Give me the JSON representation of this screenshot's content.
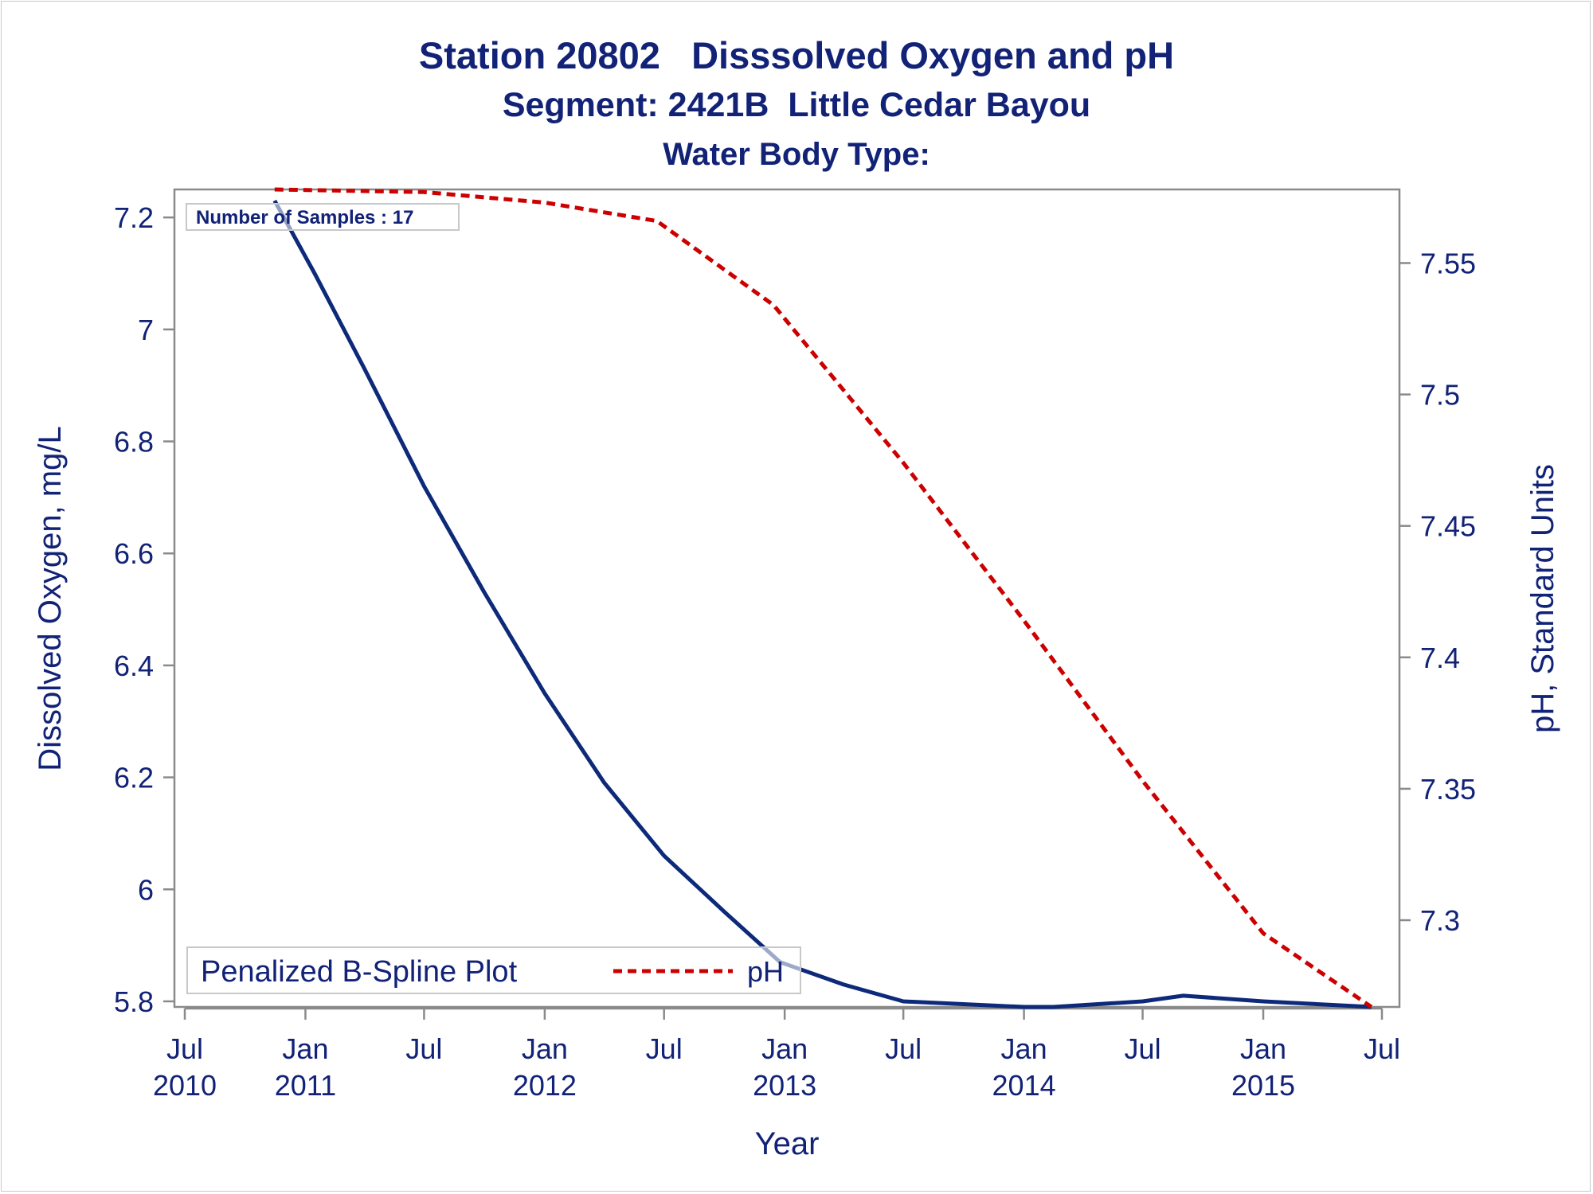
{
  "titles": {
    "line1": "Station 20802   Disssolved Oxygen and pH",
    "line2": "Segment: 2421B  Little Cedar Bayou",
    "line3": "Water Body Type:"
  },
  "colors": {
    "text": "#112277",
    "do_line": "#0d2a7a",
    "ph_line": "#cc0000",
    "axis": "#8a8a8a"
  },
  "chart_data": {
    "type": "line",
    "xlabel": "Year",
    "ylabel": "Dissolved Oxygen, mg/L",
    "y2label": "pH, Standard Units",
    "xlim": [
      "2010-07-01",
      "2015-07-01"
    ],
    "ylim": [
      5.79,
      7.25
    ],
    "y2lim": [
      7.267,
      7.578
    ],
    "xticks": [
      {
        "date": "2010-07-01",
        "month": "Jul",
        "year": "2010"
      },
      {
        "date": "2011-01-01",
        "month": "Jan",
        "year": "2011"
      },
      {
        "date": "2011-07-01",
        "month": "Jul",
        "year": ""
      },
      {
        "date": "2012-01-01",
        "month": "Jan",
        "year": "2012"
      },
      {
        "date": "2012-07-01",
        "month": "Jul",
        "year": ""
      },
      {
        "date": "2013-01-01",
        "month": "Jan",
        "year": "2013"
      },
      {
        "date": "2013-07-01",
        "month": "Jul",
        "year": ""
      },
      {
        "date": "2014-01-01",
        "month": "Jan",
        "year": "2014"
      },
      {
        "date": "2014-07-01",
        "month": "Jul",
        "year": ""
      },
      {
        "date": "2015-01-01",
        "month": "Jan",
        "year": "2015"
      },
      {
        "date": "2015-07-01",
        "month": "Jul",
        "year": ""
      }
    ],
    "yticks": [
      {
        "value": 5.8,
        "label": "5.8"
      },
      {
        "value": 6.0,
        "label": "6"
      },
      {
        "value": 6.2,
        "label": "6.2"
      },
      {
        "value": 6.4,
        "label": "6.4"
      },
      {
        "value": 6.6,
        "label": "6.6"
      },
      {
        "value": 6.8,
        "label": "6.8"
      },
      {
        "value": 7.0,
        "label": "7"
      },
      {
        "value": 7.2,
        "label": "7.2"
      }
    ],
    "y2ticks": [
      {
        "value": 7.3,
        "label": "7.3"
      },
      {
        "value": 7.35,
        "label": "7.35"
      },
      {
        "value": 7.4,
        "label": "7.4"
      },
      {
        "value": 7.45,
        "label": "7.45"
      },
      {
        "value": 7.5,
        "label": "7.5"
      },
      {
        "value": 7.55,
        "label": "7.55"
      }
    ],
    "series": [
      {
        "name": "Penalized B-Spline Plot",
        "axis": "left",
        "style": "solid",
        "points": [
          [
            "2010-11-15",
            7.23
          ],
          [
            "2011-01-15",
            7.1
          ],
          [
            "2011-04-01",
            6.93
          ],
          [
            "2011-07-01",
            6.72
          ],
          [
            "2011-10-01",
            6.53
          ],
          [
            "2012-01-01",
            6.35
          ],
          [
            "2012-04-01",
            6.19
          ],
          [
            "2012-07-01",
            6.06
          ],
          [
            "2012-10-01",
            5.96
          ],
          [
            "2012-12-25",
            5.87
          ],
          [
            "2013-04-01",
            5.83
          ],
          [
            "2013-07-01",
            5.8
          ],
          [
            "2014-01-01",
            5.79
          ],
          [
            "2014-02-15",
            5.79
          ],
          [
            "2014-07-01",
            5.8
          ],
          [
            "2014-09-01",
            5.81
          ],
          [
            "2015-01-01",
            5.8
          ],
          [
            "2015-06-15",
            5.79
          ]
        ]
      },
      {
        "name": "pH",
        "axis": "right",
        "style": "dashed",
        "points": [
          [
            "2010-11-15",
            7.578
          ],
          [
            "2011-07-01",
            7.577
          ],
          [
            "2012-01-01",
            7.573
          ],
          [
            "2012-06-20",
            7.566
          ],
          [
            "2012-12-15",
            7.534
          ],
          [
            "2013-07-01",
            7.474
          ],
          [
            "2014-01-01",
            7.414
          ],
          [
            "2014-07-01",
            7.353
          ],
          [
            "2015-01-01",
            7.295
          ],
          [
            "2015-06-15",
            7.267
          ]
        ]
      }
    ],
    "annotation": "Number of Samples : 17",
    "legend": {
      "position": "bottom-left",
      "title": "Penalized B-Spline Plot",
      "entry": "pH"
    }
  }
}
